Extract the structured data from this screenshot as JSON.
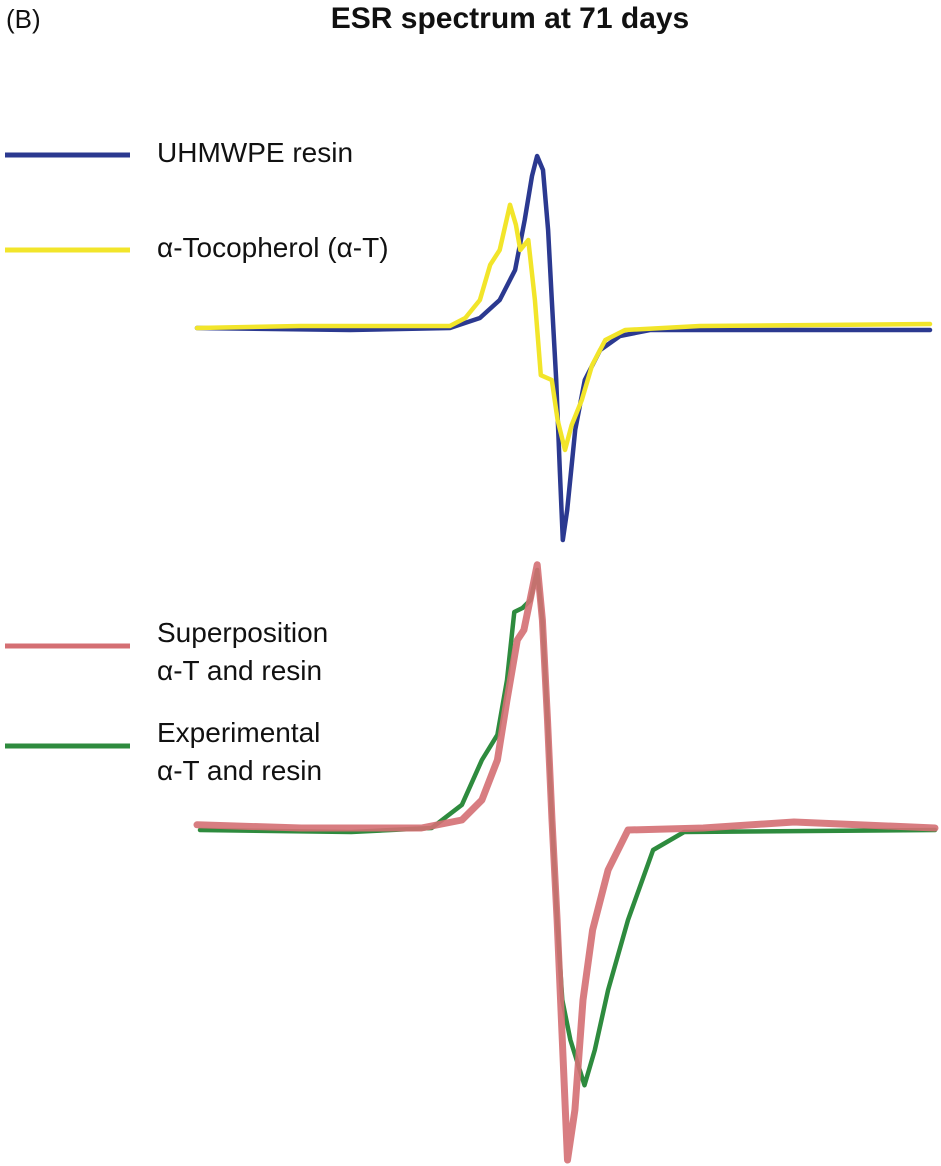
{
  "panel_label": "(B)",
  "title": "ESR spectrum at 71 days",
  "chart_data": [
    {
      "type": "line",
      "xlim": [
        0,
        100
      ],
      "ylim": [
        -56,
        48
      ],
      "series": [
        {
          "name": "UHMWPE resin",
          "color": "#2b3990",
          "x": [
            0,
            20.9,
            34.5,
            38.6,
            41.3,
            43.4,
            44.7,
            45.7,
            46.4,
            47.2,
            47.9,
            48.4,
            49.0,
            49.5,
            49.9,
            50.5,
            51.6,
            52.9,
            55.0,
            57.7,
            61.8,
            100
          ],
          "values": [
            0,
            -0.5,
            0,
            2.5,
            7,
            14.5,
            27,
            38,
            43,
            39.5,
            24.5,
            7,
            -13,
            -35.5,
            -53,
            -45.5,
            -25.5,
            -13,
            -5.5,
            -2,
            -0.5,
            -0.5
          ]
        },
        {
          "name": "α-Tocopherol (α-T)",
          "color": "#f2e52a",
          "x": [
            0,
            14.1,
            34.5,
            36.6,
            38.6,
            40.0,
            41.3,
            42.7,
            43.5,
            44.1,
            45.2,
            46.1,
            46.9,
            48.4,
            49.2,
            50.2,
            51.1,
            52.5,
            53.9,
            55.7,
            58.4,
            68.6,
            100
          ],
          "values": [
            0,
            0.5,
            0.5,
            2.5,
            7,
            15.8,
            19.5,
            30.8,
            25.8,
            19.5,
            22,
            7,
            -11.8,
            -13,
            -23,
            -30.5,
            -24.3,
            -18,
            -9.3,
            -3,
            -0.5,
            0.5,
            1
          ]
        }
      ]
    },
    {
      "type": "line",
      "xlim": [
        0,
        100
      ],
      "ylim": [
        -84,
        68
      ],
      "series": [
        {
          "name": "Superposition\nα-T and resin",
          "color": "#d46f73",
          "x": [
            0,
            14.1,
            30.4,
            35.9,
            38.6,
            40.7,
            42.0,
            43.4,
            44.3,
            45.4,
            46.1,
            46.8,
            47.5,
            48.1,
            48.8,
            49.5,
            50.2,
            51.2,
            52.3,
            53.6,
            55.7,
            58.4,
            68.6,
            80.9,
            100
          ],
          "values": [
            0.8,
            0,
            0,
            2,
            7,
            17,
            32,
            47,
            49.5,
            59.5,
            65.8,
            52,
            27,
            2,
            -23,
            -53,
            -83,
            -70.5,
            -43,
            -25.5,
            -10.5,
            -0.5,
            0,
            1.5,
            0
          ]
        },
        {
          "name": "Experimental\nα-T and resin",
          "color": "#2e8b3e",
          "x": [
            0.4,
            20.9,
            31.8,
            35.9,
            38.6,
            40.7,
            42.0,
            43.0,
            44.1,
            45.2,
            46.1,
            46.8,
            47.5,
            48.1,
            48.8,
            49.5,
            50.6,
            52.5,
            53.9,
            55.7,
            58.4,
            61.8,
            66.0,
            100
          ],
          "values": [
            -0.5,
            -1,
            0,
            5.8,
            17,
            23.3,
            37,
            54,
            55,
            57,
            64.5,
            52,
            27,
            2,
            -23,
            -43,
            -53,
            -64.3,
            -55.5,
            -40.5,
            -23,
            -5.5,
            -1,
            -0.5
          ]
        }
      ]
    }
  ]
}
